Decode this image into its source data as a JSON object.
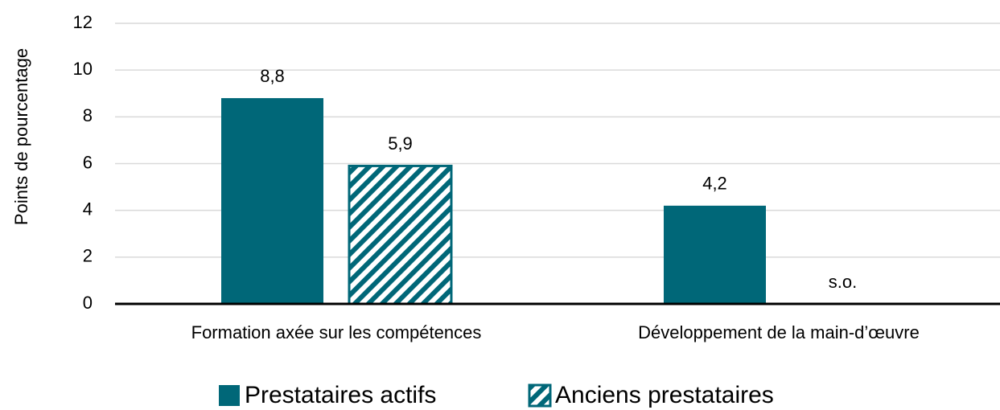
{
  "chart_data": {
    "type": "bar",
    "y_label": "Points de pourcentage",
    "categories": [
      "Formation axée sur les compétences",
      "Développement de la main-d’œuvre"
    ],
    "series": [
      {
        "name": "Prestataires actifs",
        "color": "#006778",
        "pattern": "solid",
        "values": [
          8.8,
          4.2
        ],
        "value_labels": [
          "8,8",
          "4,2"
        ]
      },
      {
        "name": "Anciens prestataires",
        "color": "#006778",
        "pattern": "hatch",
        "values": [
          5.9,
          null
        ],
        "value_labels": [
          "5,9",
          "s.o."
        ]
      }
    ],
    "ylim": [
      0,
      12
    ],
    "yticks": [
      0,
      2,
      4,
      6,
      8,
      10,
      12
    ],
    "grid": true,
    "legend": "bottom"
  }
}
